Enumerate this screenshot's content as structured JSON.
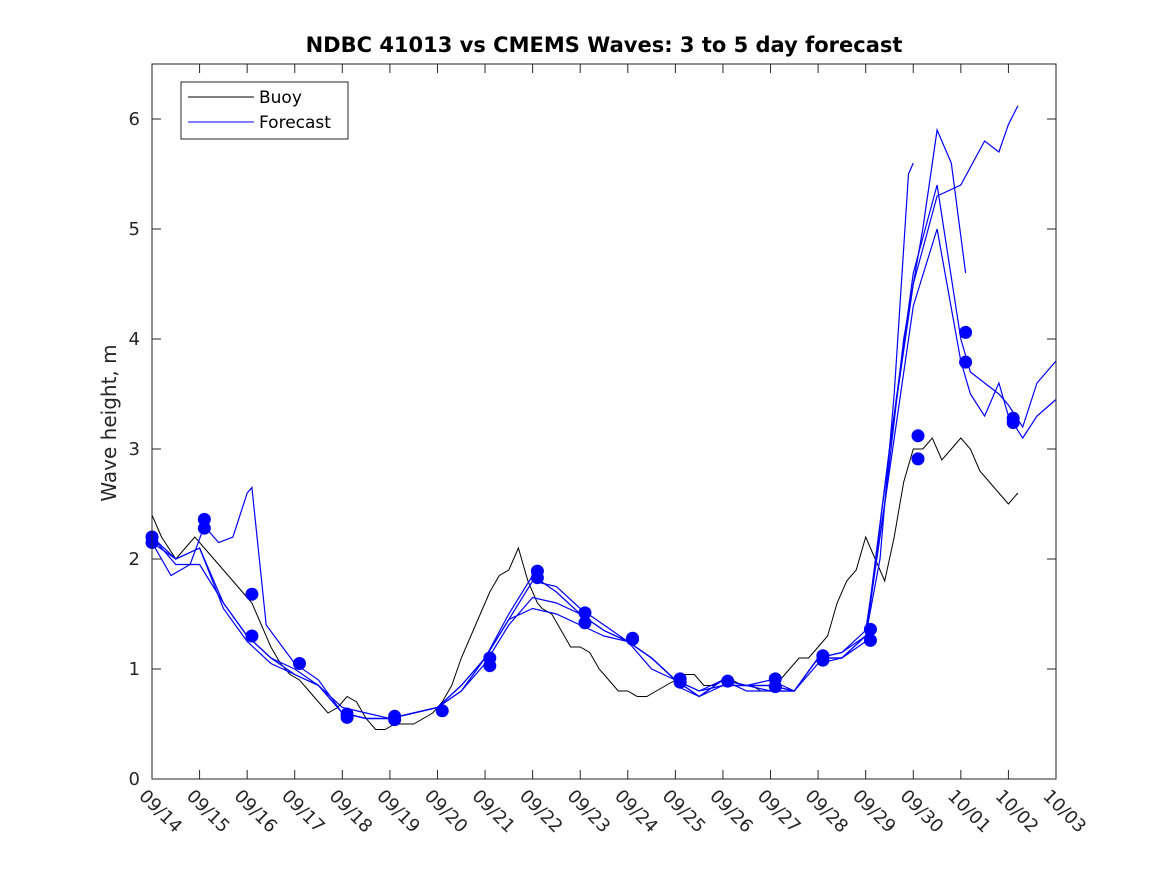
{
  "chart_data": {
    "type": "line",
    "title": "NDBC 41013 vs CMEMS Waves: 3 to 5 day forecast",
    "xlabel": "",
    "ylabel": "Wave height, m",
    "xlim": [
      0,
      19
    ],
    "ylim": [
      0,
      6.5
    ],
    "x_ticks": [
      0,
      1,
      2,
      3,
      4,
      5,
      6,
      7,
      8,
      9,
      10,
      11,
      12,
      13,
      14,
      15,
      16,
      17,
      18,
      19
    ],
    "x_tick_labels": [
      "09/14",
      "09/15",
      "09/16",
      "09/17",
      "09/18",
      "09/19",
      "09/20",
      "09/21",
      "09/22",
      "09/23",
      "09/24",
      "09/25",
      "09/26",
      "09/27",
      "09/28",
      "09/29",
      "09/30",
      "10/01",
      "10/02",
      "10/03"
    ],
    "y_ticks": [
      0,
      1,
      2,
      3,
      4,
      5,
      6
    ],
    "y_tick_labels": [
      "0",
      "1",
      "2",
      "3",
      "4",
      "5",
      "6"
    ],
    "grid": false,
    "legend": {
      "position": "top-left",
      "entries": [
        "Buoy",
        "Forecast"
      ]
    },
    "colors": {
      "buoy": "#000000",
      "forecast": "#0000ff",
      "markers": "#0000ff"
    },
    "series": [
      {
        "name": "Buoy",
        "color": "#000000",
        "x": [
          0,
          0.2,
          0.35,
          0.5,
          0.7,
          0.9,
          1.1,
          1.3,
          1.5,
          1.7,
          1.9,
          2.1,
          2.3,
          2.5,
          2.7,
          2.9,
          3.1,
          3.3,
          3.5,
          3.7,
          3.9,
          4.1,
          4.3,
          4.5,
          4.7,
          4.9,
          5.1,
          5.3,
          5.5,
          5.7,
          5.9,
          6.1,
          6.3,
          6.5,
          6.7,
          6.9,
          7.1,
          7.3,
          7.5,
          7.7,
          7.9,
          8.1,
          8.2,
          8.4,
          8.6,
          8.8,
          9.0,
          9.2,
          9.4,
          9.6,
          9.8,
          10.0,
          10.2,
          10.4,
          10.6,
          10.8,
          11.0,
          11.2,
          11.4,
          11.6,
          11.8,
          12.0,
          12.2,
          12.4,
          12.6,
          12.8,
          13.0,
          13.2,
          13.4,
          13.6,
          13.8,
          14.0,
          14.2,
          14.4,
          14.6,
          14.8,
          15.0,
          15.2,
          15.4,
          15.6,
          15.8,
          16.0,
          16.2,
          16.4,
          16.6,
          16.8,
          17.0,
          17.2,
          17.4,
          17.6,
          17.8,
          18.0,
          18.2
        ],
        "values": [
          2.4,
          2.2,
          2.1,
          2.0,
          2.1,
          2.2,
          2.1,
          2.0,
          1.9,
          1.8,
          1.7,
          1.6,
          1.4,
          1.2,
          1.05,
          0.95,
          0.9,
          0.8,
          0.7,
          0.6,
          0.65,
          0.75,
          0.7,
          0.55,
          0.45,
          0.45,
          0.5,
          0.5,
          0.5,
          0.55,
          0.6,
          0.7,
          0.85,
          1.1,
          1.3,
          1.5,
          1.7,
          1.85,
          1.9,
          2.1,
          1.8,
          1.6,
          1.55,
          1.5,
          1.35,
          1.2,
          1.2,
          1.15,
          1.0,
          0.9,
          0.8,
          0.8,
          0.75,
          0.75,
          0.8,
          0.85,
          0.9,
          0.95,
          0.95,
          0.85,
          0.85,
          0.9,
          0.9,
          0.85,
          0.85,
          0.8,
          0.8,
          0.9,
          1.0,
          1.1,
          1.1,
          1.2,
          1.3,
          1.6,
          1.8,
          1.9,
          2.2,
          2.0,
          1.8,
          2.2,
          2.7,
          3.0,
          3.0,
          3.1,
          2.9,
          3.0,
          3.1,
          3.0,
          2.8,
          2.7,
          2.6,
          2.5,
          2.6
        ]
      },
      {
        "name": "Forecast 1",
        "color": "#0000ff",
        "x": [
          0,
          0.5,
          1.0,
          1.5,
          2.0,
          2.5,
          3.0,
          3.5,
          4.0,
          4.5,
          5.0,
          5.5,
          6.0,
          6.5,
          7.0,
          7.5,
          8.0,
          8.5,
          9.0,
          9.5,
          10.0,
          10.5,
          11.0,
          11.5,
          12.0,
          12.5,
          13.0,
          13.5,
          14.0,
          14.5,
          15.0,
          15.3,
          15.6,
          15.9,
          16.0
        ],
        "values": [
          2.2,
          1.95,
          1.95,
          1.6,
          1.3,
          1.1,
          1.0,
          0.85,
          0.6,
          0.55,
          0.55,
          0.6,
          0.65,
          0.8,
          1.1,
          1.45,
          1.8,
          1.75,
          1.55,
          1.4,
          1.25,
          1.1,
          0.9,
          0.8,
          0.85,
          0.85,
          0.85,
          0.8,
          1.05,
          1.1,
          1.3,
          2.0,
          3.5,
          5.5,
          5.6
        ]
      },
      {
        "name": "Forecast 2",
        "color": "#0000ff",
        "x": [
          0,
          0.4,
          0.8,
          1.1,
          1.4,
          1.7,
          2.0,
          2.1,
          2.4,
          3.0,
          3.5,
          4.0,
          4.5,
          5.0,
          5.5,
          6.0,
          6.5,
          7.0,
          7.5,
          8.0,
          8.5,
          9.0,
          9.5,
          10.0,
          10.5,
          11.0,
          11.5,
          12.0,
          12.5,
          13.0,
          13.5,
          14.0,
          14.5,
          15.0,
          15.4,
          15.8,
          16.2,
          16.5,
          16.8,
          17.1
        ],
        "values": [
          2.15,
          1.85,
          1.95,
          2.3,
          2.15,
          2.2,
          2.6,
          2.65,
          1.4,
          1.05,
          0.9,
          0.6,
          0.55,
          0.55,
          0.6,
          0.65,
          0.85,
          1.1,
          1.5,
          1.85,
          1.7,
          1.5,
          1.35,
          1.25,
          1.0,
          0.9,
          0.8,
          0.9,
          0.85,
          0.9,
          0.8,
          1.1,
          1.15,
          1.35,
          2.5,
          4.0,
          5.0,
          5.9,
          5.6,
          4.6
        ]
      },
      {
        "name": "Forecast 3",
        "color": "#0000ff",
        "x": [
          0,
          0.5,
          1.0,
          1.5,
          2.0,
          2.5,
          3.0,
          3.5,
          4.0,
          4.5,
          5.0,
          5.5,
          6.0,
          6.5,
          7.0,
          7.5,
          8.0,
          8.5,
          9.0,
          9.5,
          10.0,
          10.5,
          11.0,
          11.5,
          12.0,
          12.5,
          13.0,
          13.5,
          14.0,
          14.5,
          15.0,
          15.5,
          16.0,
          16.5,
          17.0,
          17.5,
          17.8,
          18.0,
          18.2
        ],
        "values": [
          2.15,
          2.0,
          2.1,
          1.6,
          1.3,
          1.1,
          0.95,
          0.85,
          0.6,
          0.55,
          0.55,
          0.6,
          0.65,
          0.8,
          1.05,
          1.4,
          1.65,
          1.6,
          1.5,
          1.35,
          1.25,
          1.1,
          0.9,
          0.75,
          0.9,
          0.85,
          0.85,
          0.8,
          1.1,
          1.1,
          1.25,
          3.0,
          4.5,
          5.3,
          5.4,
          5.8,
          5.7,
          5.95,
          6.12
        ]
      },
      {
        "name": "Forecast 4",
        "color": "#0000ff",
        "x": [
          0,
          0.5,
          1.0,
          1.5,
          2.0,
          2.5,
          3.0,
          3.5,
          4.0,
          4.5,
          5.0,
          5.5,
          6.0,
          6.5,
          7.0,
          7.5,
          8.0,
          8.5,
          9.0,
          9.5,
          10.0,
          10.5,
          11.0,
          11.5,
          12.0,
          12.5,
          13.0,
          13.5,
          14.0,
          14.5,
          15.0,
          15.5,
          16.0,
          16.5,
          17.0,
          17.2,
          17.5,
          17.8,
          18.0,
          18.3,
          18.6,
          19.0
        ],
        "values": [
          2.2,
          2.0,
          2.1,
          1.55,
          1.25,
          1.05,
          0.95,
          0.85,
          0.65,
          0.6,
          0.55,
          0.6,
          0.65,
          0.85,
          1.1,
          1.45,
          1.55,
          1.5,
          1.4,
          1.3,
          1.25,
          1.1,
          0.9,
          0.75,
          0.9,
          0.8,
          0.8,
          0.8,
          1.1,
          1.1,
          1.3,
          2.8,
          4.3,
          5.0,
          3.8,
          3.5,
          3.3,
          3.6,
          3.3,
          3.1,
          3.3,
          3.45
        ]
      },
      {
        "name": "Forecast 5",
        "color": "#0000ff",
        "x": [
          11.0,
          11.5,
          12.0,
          12.5,
          13.0,
          13.5,
          14.0,
          14.5,
          15.0,
          15.5,
          16.0,
          16.5,
          17.0,
          17.2,
          17.5,
          17.8,
          18.0,
          18.3,
          18.6,
          19.0
        ],
        "values": [
          0.85,
          0.75,
          0.85,
          0.85,
          0.8,
          0.8,
          1.1,
          1.15,
          1.3,
          3.0,
          4.6,
          5.4,
          4.0,
          3.7,
          3.6,
          3.5,
          3.4,
          3.2,
          3.6,
          3.8
        ]
      }
    ],
    "markers": {
      "x": [
        0,
        0,
        1.1,
        1.1,
        2.1,
        2.1,
        3.1,
        4.1,
        4.1,
        5.1,
        5.1,
        6.1,
        7.1,
        7.1,
        8.1,
        8.1,
        9.1,
        9.1,
        10.1,
        10.1,
        11.1,
        11.1,
        12.1,
        13.1,
        13.1,
        14.1,
        14.1,
        15.1,
        15.1,
        16.1,
        16.1,
        17.1,
        17.1,
        18.1,
        18.1
      ],
      "values": [
        2.2,
        2.15,
        2.36,
        2.28,
        1.68,
        1.3,
        1.05,
        0.59,
        0.56,
        0.57,
        0.54,
        0.62,
        1.1,
        1.03,
        1.89,
        1.83,
        1.51,
        1.42,
        1.28,
        1.27,
        0.91,
        0.88,
        0.89,
        0.91,
        0.84,
        1.12,
        1.08,
        1.36,
        1.26,
        3.12,
        2.91,
        4.06,
        3.79,
        3.28,
        3.24
      ]
    }
  }
}
